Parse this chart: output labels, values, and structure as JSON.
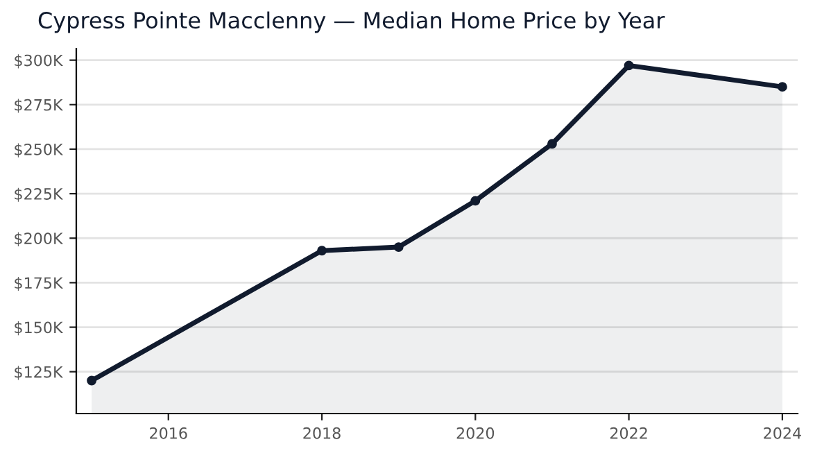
{
  "chart_data": {
    "type": "area",
    "title": "Cypress Pointe Macclenny — Median Home Price by Year",
    "x": [
      2015,
      2018,
      2019,
      2020,
      2021,
      2022,
      2024
    ],
    "series": [
      {
        "color": "#111b2e",
        "values": [
          120000,
          193000,
          195000,
          221000,
          253000,
          297000,
          285000
        ]
      }
    ],
    "xlim": [
      2014.8,
      2024.2
    ],
    "xticks": [
      2016,
      2018,
      2020,
      2022,
      2024
    ],
    "ylim": [
      101500,
      306500
    ],
    "yticks": [
      {
        "value": 125000,
        "label": "$125K"
      },
      {
        "value": 150000,
        "label": "$150K"
      },
      {
        "value": 175000,
        "label": "$175K"
      },
      {
        "value": 200000,
        "label": "$200K"
      },
      {
        "value": 225000,
        "label": "$225K"
      },
      {
        "value": 250000,
        "label": "$250K"
      },
      {
        "value": 275000,
        "label": "$275K"
      },
      {
        "value": 300000,
        "label": "$300K"
      }
    ],
    "grid": "y",
    "marker": "circle",
    "line_style": "solid",
    "legend": false
  }
}
